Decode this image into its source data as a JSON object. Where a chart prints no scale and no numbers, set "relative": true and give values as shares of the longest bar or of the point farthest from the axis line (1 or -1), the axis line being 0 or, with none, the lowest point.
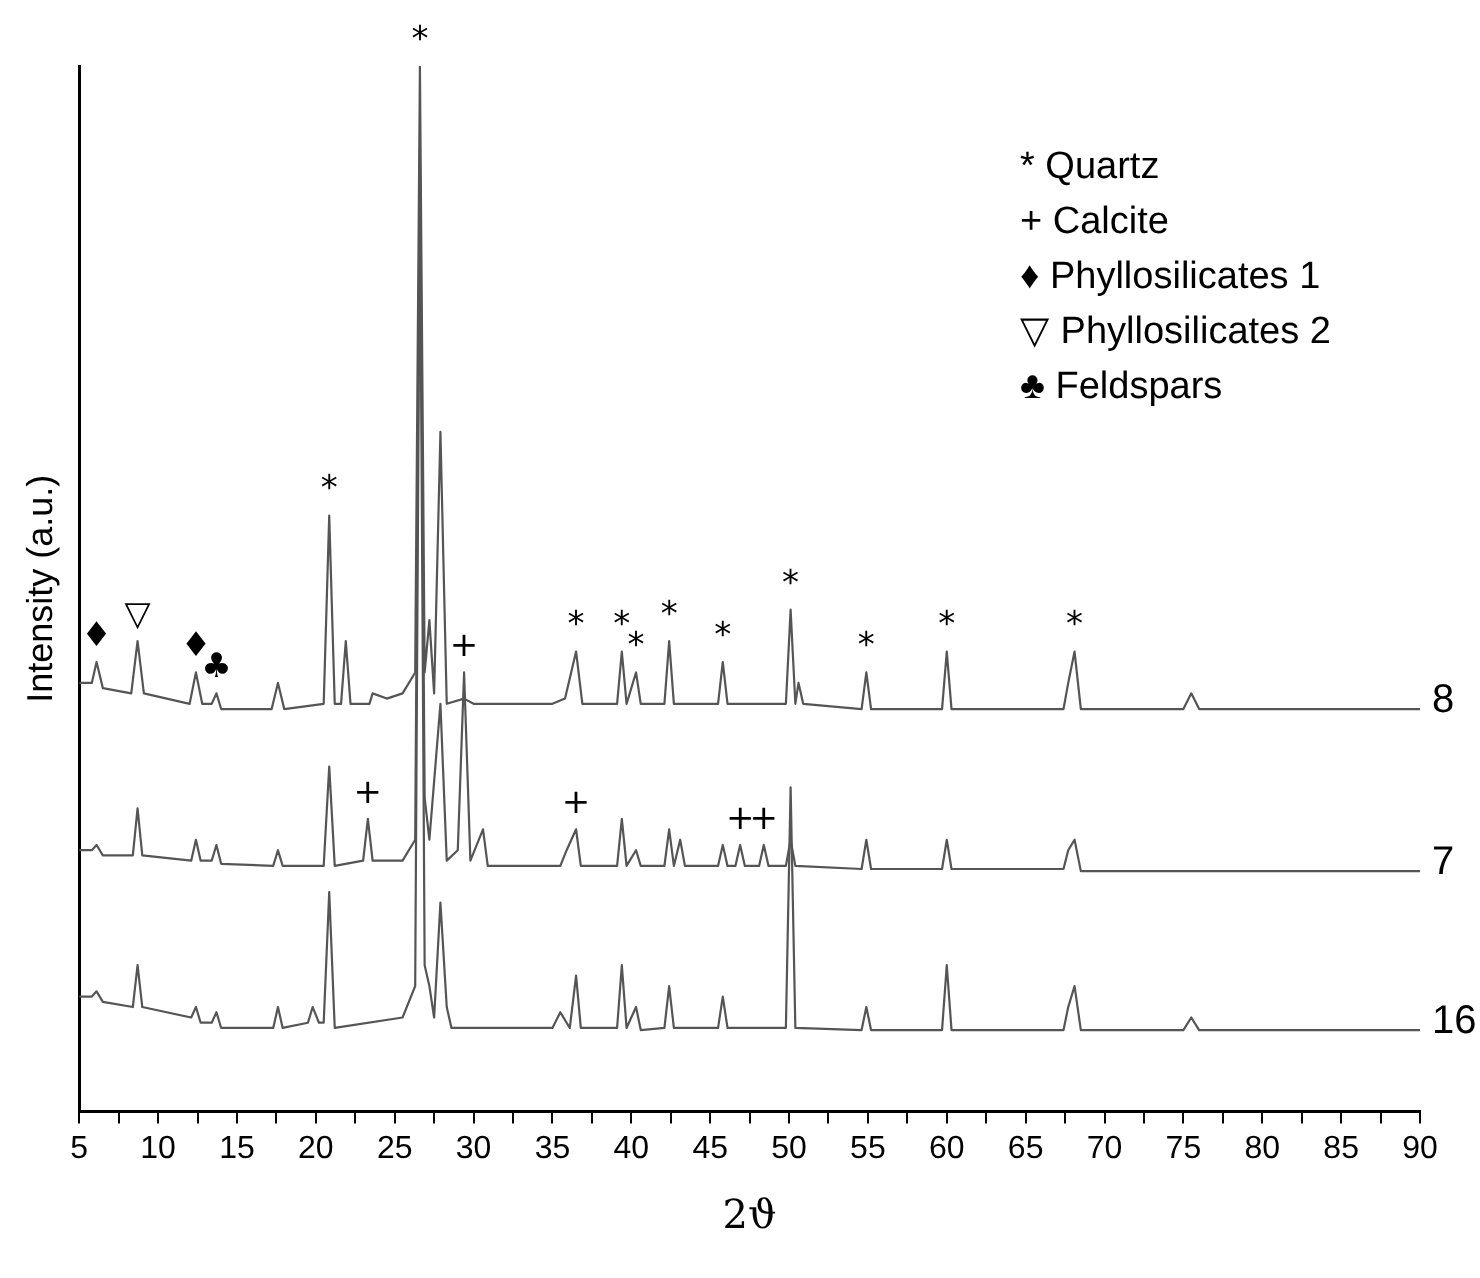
{
  "chart_data": {
    "type": "line",
    "relative": true,
    "xlabel": "2ϑ",
    "ylabel": "Intensity (a.u.)",
    "xlim": [
      5,
      90
    ],
    "xticks": [
      5,
      {
        "value": 7.5,
        "label": null
      },
      10,
      {
        "value": 12.5,
        "label": null
      },
      15,
      {
        "value": 17.5,
        "label": null
      },
      20,
      {
        "value": 22.5,
        "label": null
      },
      25,
      {
        "value": 27.5,
        "label": null
      },
      30,
      {
        "value": 32.5,
        "label": null
      },
      35,
      {
        "value": 37.5,
        "label": null
      },
      40,
      {
        "value": 42.5,
        "label": null
      },
      45,
      {
        "value": 47.5,
        "label": null
      },
      50,
      {
        "value": 52.5,
        "label": null
      },
      55,
      {
        "value": 57.5,
        "label": null
      },
      60,
      {
        "value": 62.5,
        "label": null
      },
      65,
      {
        "value": 67.5,
        "label": null
      },
      70,
      {
        "value": 72.5,
        "label": null
      },
      75,
      {
        "value": 77.5,
        "label": null
      },
      80,
      {
        "value": 82.5,
        "label": null
      },
      85,
      {
        "value": 87.5,
        "label": null
      },
      90
    ],
    "marker": "none",
    "line_style": "solid",
    "series": [
      {
        "name": "8",
        "color": "#555555",
        "x": [
          5,
          5.8,
          6.1,
          6.5,
          8.3,
          8.7,
          9.1,
          12.0,
          12.4,
          12.8,
          13.4,
          13.7,
          14.0,
          17.2,
          17.6,
          18.0,
          20.5,
          20.85,
          21.2,
          21.6,
          21.9,
          22.2,
          23.4,
          23.6,
          24.5,
          25.5,
          26.3,
          26.6,
          26.9,
          27.2,
          27.5,
          27.9,
          28.3,
          29.4,
          30,
          35,
          35.8,
          36.5,
          36.9,
          39.1,
          39.4,
          39.7,
          40.3,
          40.6,
          42.1,
          42.4,
          42.7,
          45.5,
          45.8,
          46.1,
          49.8,
          50.1,
          50.4,
          50.6,
          50.9,
          54.6,
          54.9,
          55.2,
          59.7,
          60,
          60.3,
          67.4,
          67.7,
          68.1,
          68.5,
          75,
          75.5,
          76,
          90
        ],
        "values": [
          0.41,
          0.41,
          0.43,
          0.405,
          0.4,
          0.45,
          0.4,
          0.39,
          0.42,
          0.39,
          0.39,
          0.4,
          0.385,
          0.385,
          0.41,
          0.385,
          0.39,
          0.57,
          0.39,
          0.39,
          0.45,
          0.39,
          0.39,
          0.4,
          0.395,
          0.4,
          0.42,
          1.0,
          0.42,
          0.47,
          0.4,
          0.65,
          0.39,
          0.395,
          0.39,
          0.39,
          0.395,
          0.44,
          0.39,
          0.39,
          0.44,
          0.39,
          0.42,
          0.39,
          0.39,
          0.45,
          0.39,
          0.39,
          0.43,
          0.39,
          0.39,
          0.48,
          0.39,
          0.41,
          0.39,
          0.385,
          0.42,
          0.385,
          0.385,
          0.44,
          0.385,
          0.385,
          0.41,
          0.44,
          0.385,
          0.385,
          0.4,
          0.385,
          0.385
        ]
      },
      {
        "name": "7",
        "color": "#555555",
        "x": [
          5,
          5.8,
          6.1,
          6.5,
          8.4,
          8.7,
          9.0,
          12.1,
          12.4,
          12.7,
          13.4,
          13.7,
          14.0,
          17.3,
          17.6,
          17.9,
          20.5,
          20.85,
          21.2,
          23.0,
          23.3,
          23.6,
          25.5,
          26.3,
          26.6,
          26.9,
          27.2,
          27.9,
          28.3,
          29.0,
          29.4,
          29.8,
          30.6,
          30.9,
          35.5,
          35.9,
          36.5,
          36.8,
          39.1,
          39.4,
          39.7,
          40.3,
          40.6,
          42.1,
          42.4,
          42.7,
          43.1,
          43.4,
          45.5,
          45.8,
          46.1,
          46.6,
          46.9,
          47.2,
          48.1,
          48.4,
          48.7,
          49.8,
          50.1,
          50.4,
          54.6,
          54.9,
          55.2,
          59.7,
          60,
          60.3,
          67.4,
          67.7,
          68.1,
          68.5,
          90
        ],
        "values": [
          0.25,
          0.25,
          0.255,
          0.245,
          0.245,
          0.29,
          0.245,
          0.24,
          0.26,
          0.24,
          0.24,
          0.255,
          0.237,
          0.235,
          0.25,
          0.235,
          0.235,
          0.33,
          0.235,
          0.24,
          0.28,
          0.24,
          0.24,
          0.26,
          0.92,
          0.3,
          0.26,
          0.39,
          0.24,
          0.25,
          0.42,
          0.24,
          0.27,
          0.235,
          0.235,
          0.25,
          0.27,
          0.235,
          0.235,
          0.28,
          0.235,
          0.25,
          0.235,
          0.235,
          0.27,
          0.235,
          0.26,
          0.235,
          0.235,
          0.255,
          0.235,
          0.235,
          0.255,
          0.235,
          0.235,
          0.255,
          0.235,
          0.235,
          0.26,
          0.235,
          0.232,
          0.26,
          0.232,
          0.232,
          0.26,
          0.232,
          0.232,
          0.25,
          0.26,
          0.23,
          0.23
        ]
      },
      {
        "name": "16",
        "color": "#555555",
        "x": [
          5,
          5.8,
          6.1,
          6.5,
          8.4,
          8.7,
          9.0,
          12.1,
          12.4,
          12.7,
          13.4,
          13.7,
          14.0,
          17.3,
          17.6,
          17.9,
          19.5,
          19.8,
          20.2,
          20.5,
          20.85,
          21.2,
          25.5,
          26.3,
          26.6,
          26.9,
          27.2,
          27.5,
          27.9,
          28.3,
          28.6,
          30.6,
          35,
          35.5,
          36.1,
          36.5,
          36.8,
          39.1,
          39.4,
          39.7,
          40.3,
          40.6,
          42.1,
          42.4,
          42.7,
          45.5,
          45.8,
          46.1,
          49.8,
          50.1,
          50.4,
          54.6,
          54.9,
          55.2,
          59.7,
          60,
          60.3,
          67.4,
          67.7,
          68.1,
          68.5,
          75,
          75.5,
          76,
          90
        ],
        "values": [
          0.11,
          0.11,
          0.115,
          0.105,
          0.1,
          0.14,
          0.1,
          0.09,
          0.1,
          0.085,
          0.085,
          0.095,
          0.08,
          0.08,
          0.1,
          0.08,
          0.085,
          0.1,
          0.085,
          0.085,
          0.21,
          0.08,
          0.09,
          0.12,
          0.88,
          0.14,
          0.12,
          0.09,
          0.2,
          0.1,
          0.08,
          0.08,
          0.08,
          0.095,
          0.08,
          0.13,
          0.08,
          0.08,
          0.14,
          0.08,
          0.1,
          0.078,
          0.08,
          0.12,
          0.08,
          0.08,
          0.11,
          0.08,
          0.08,
          0.31,
          0.08,
          0.078,
          0.1,
          0.078,
          0.078,
          0.14,
          0.078,
          0.078,
          0.1,
          0.12,
          0.078,
          0.078,
          0.09,
          0.078,
          0.078
        ]
      }
    ],
    "annotations": [
      "* Quartz",
      "+ Calcite",
      "♦ Phyllosilicates 1",
      "▽ Phyllosilicates 2",
      "♣ Feldspars",
      {
        "text": "♦",
        "x": 6.1,
        "y": 0.43
      },
      {
        "text": "▽",
        "x": 8.7,
        "y": 0.45
      },
      {
        "text": "♦",
        "x": 12.4,
        "y": 0.42
      },
      {
        "text": "♣",
        "x": 13.7,
        "y": 0.4
      },
      {
        "text": "*",
        "x": 20.85,
        "y": 0.57
      },
      {
        "text": "*",
        "x": 26.6,
        "y": 1.0
      },
      {
        "text": "*",
        "x": 36.5,
        "y": 0.44
      },
      {
        "text": "*",
        "x": 39.4,
        "y": 0.44
      },
      {
        "text": "*",
        "x": 40.3,
        "y": 0.42
      },
      {
        "text": "*",
        "x": 42.4,
        "y": 0.45
      },
      {
        "text": "*",
        "x": 45.8,
        "y": 0.43
      },
      {
        "text": "*",
        "x": 50.1,
        "y": 0.48
      },
      {
        "text": "*",
        "x": 54.9,
        "y": 0.42
      },
      {
        "text": "*",
        "x": 60,
        "y": 0.44
      },
      {
        "text": "*",
        "x": 68.1,
        "y": 0.44
      },
      {
        "text": "+",
        "x": 23.3,
        "y": 0.28
      },
      {
        "text": "+",
        "x": 29.4,
        "y": 0.42
      },
      {
        "text": "+",
        "x": 36.5,
        "y": 0.27
      },
      {
        "text": "+",
        "x": 46.9,
        "y": 0.255
      },
      {
        "text": "+",
        "x": 48.4,
        "y": 0.255
      }
    ]
  }
}
